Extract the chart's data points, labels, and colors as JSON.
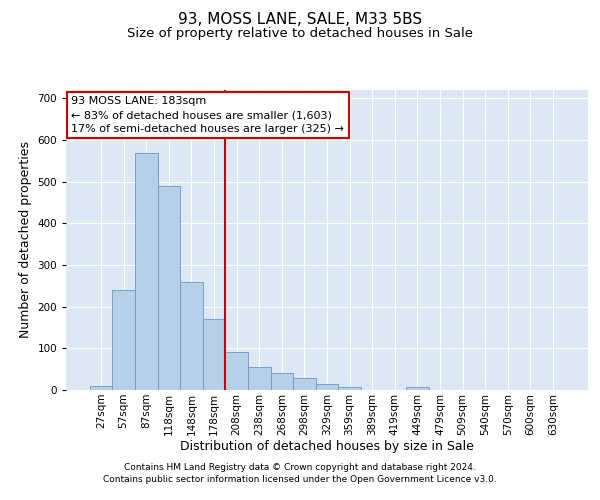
{
  "title1": "93, MOSS LANE, SALE, M33 5BS",
  "title2": "Size of property relative to detached houses in Sale",
  "xlabel": "Distribution of detached houses by size in Sale",
  "ylabel": "Number of detached properties",
  "bin_labels": [
    "27sqm",
    "57sqm",
    "87sqm",
    "118sqm",
    "148sqm",
    "178sqm",
    "208sqm",
    "238sqm",
    "268sqm",
    "298sqm",
    "329sqm",
    "359sqm",
    "389sqm",
    "419sqm",
    "449sqm",
    "479sqm",
    "509sqm",
    "540sqm",
    "570sqm",
    "600sqm",
    "630sqm"
  ],
  "bar_values": [
    10,
    240,
    570,
    490,
    260,
    170,
    92,
    55,
    40,
    30,
    15,
    8,
    0,
    0,
    8,
    0,
    0,
    0,
    0,
    0,
    0
  ],
  "bar_color": "#b8cfe8",
  "bar_edge_color": "#6699cc",
  "background_color": "#dde8f5",
  "vline_color": "#cc0000",
  "annotation_line1": "93 MOSS LANE: 183sqm",
  "annotation_line2": "← 83% of detached houses are smaller (1,603)",
  "annotation_line3": "17% of semi-detached houses are larger (325) →",
  "annotation_box_color": "#ffffff",
  "annotation_box_edge": "#cc0000",
  "ylim": [
    0,
    720
  ],
  "yticks": [
    0,
    100,
    200,
    300,
    400,
    500,
    600,
    700
  ],
  "footer1": "Contains HM Land Registry data © Crown copyright and database right 2024.",
  "footer2": "Contains public sector information licensed under the Open Government Licence v3.0.",
  "title_fontsize": 11,
  "subtitle_fontsize": 9.5,
  "tick_fontsize": 7.5,
  "axis_label_fontsize": 9,
  "annotation_fontsize": 8,
  "footer_fontsize": 6.5
}
